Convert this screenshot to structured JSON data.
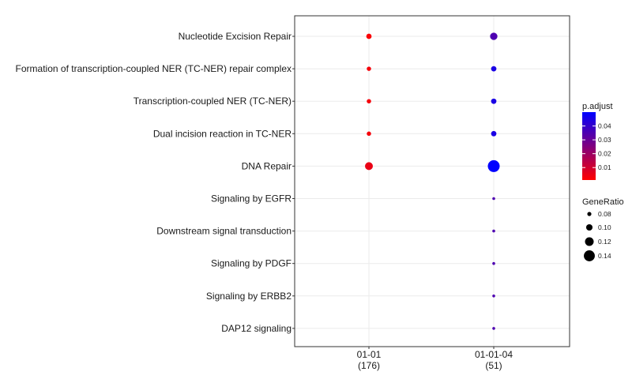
{
  "chart_data": {
    "type": "scatter",
    "subtype": "dot-plot",
    "x_categories": [
      {
        "label": "01-01",
        "count": "(176)"
      },
      {
        "label": "01-01-04",
        "count": "(51)"
      }
    ],
    "y_categories": [
      "Nucleotide Excision Repair",
      "Formation of transcription-coupled NER (TC-NER) repair complex",
      "Transcription-coupled NER (TC-NER)",
      "Dual incision reaction in TC-NER",
      "DNA Repair",
      "Signaling by EGFR",
      "Downstream signal transduction",
      "Signaling by PDGF",
      "Signaling by ERBB2",
      "DAP12 signaling"
    ],
    "points": [
      {
        "x": "01-01",
        "y": "Nucleotide Excision Repair",
        "gene_ratio": 0.085,
        "p_adjust": 0.002
      },
      {
        "x": "01-01",
        "y": "Formation of transcription-coupled NER (TC-NER) repair complex",
        "gene_ratio": 0.075,
        "p_adjust": 0.003
      },
      {
        "x": "01-01",
        "y": "Transcription-coupled NER (TC-NER)",
        "gene_ratio": 0.075,
        "p_adjust": 0.003
      },
      {
        "x": "01-01",
        "y": "Dual incision reaction in TC-NER",
        "gene_ratio": 0.075,
        "p_adjust": 0.003
      },
      {
        "x": "01-01",
        "y": "DNA Repair",
        "gene_ratio": 0.11,
        "p_adjust": 0.005
      },
      {
        "x": "01-01-04",
        "y": "Nucleotide Excision Repair",
        "gene_ratio": 0.105,
        "p_adjust": 0.035
      },
      {
        "x": "01-01-04",
        "y": "Formation of transcription-coupled NER (TC-NER) repair complex",
        "gene_ratio": 0.085,
        "p_adjust": 0.045
      },
      {
        "x": "01-01-04",
        "y": "Transcription-coupled NER (TC-NER)",
        "gene_ratio": 0.085,
        "p_adjust": 0.045
      },
      {
        "x": "01-01-04",
        "y": "Dual incision reaction in TC-NER",
        "gene_ratio": 0.085,
        "p_adjust": 0.045
      },
      {
        "x": "01-01-04",
        "y": "DNA Repair",
        "gene_ratio": 0.15,
        "p_adjust": 0.05
      },
      {
        "x": "01-01-04",
        "y": "Signaling by EGFR",
        "gene_ratio": 0.06,
        "p_adjust": 0.035
      },
      {
        "x": "01-01-04",
        "y": "Downstream signal transduction",
        "gene_ratio": 0.06,
        "p_adjust": 0.035
      },
      {
        "x": "01-01-04",
        "y": "Signaling by PDGF",
        "gene_ratio": 0.06,
        "p_adjust": 0.035
      },
      {
        "x": "01-01-04",
        "y": "Signaling by ERBB2",
        "gene_ratio": 0.06,
        "p_adjust": 0.035
      },
      {
        "x": "01-01-04",
        "y": "DAP12 signaling",
        "gene_ratio": 0.06,
        "p_adjust": 0.035
      }
    ],
    "color_legend": {
      "title": "p.adjust",
      "ticks": [
        "0.04",
        "0.03",
        "0.02",
        "0.01"
      ],
      "tick_values": [
        0.04,
        0.03,
        0.02,
        0.01
      ],
      "range": [
        0.001,
        0.05
      ],
      "low_color": "#ff0000",
      "high_color": "#0000ff"
    },
    "size_legend": {
      "title": "GeneRatio",
      "entries": [
        "0.08",
        "0.10",
        "0.12",
        "0.14"
      ],
      "values": [
        0.08,
        0.1,
        0.12,
        0.14
      ]
    },
    "grid": true,
    "legend_position": "right"
  }
}
